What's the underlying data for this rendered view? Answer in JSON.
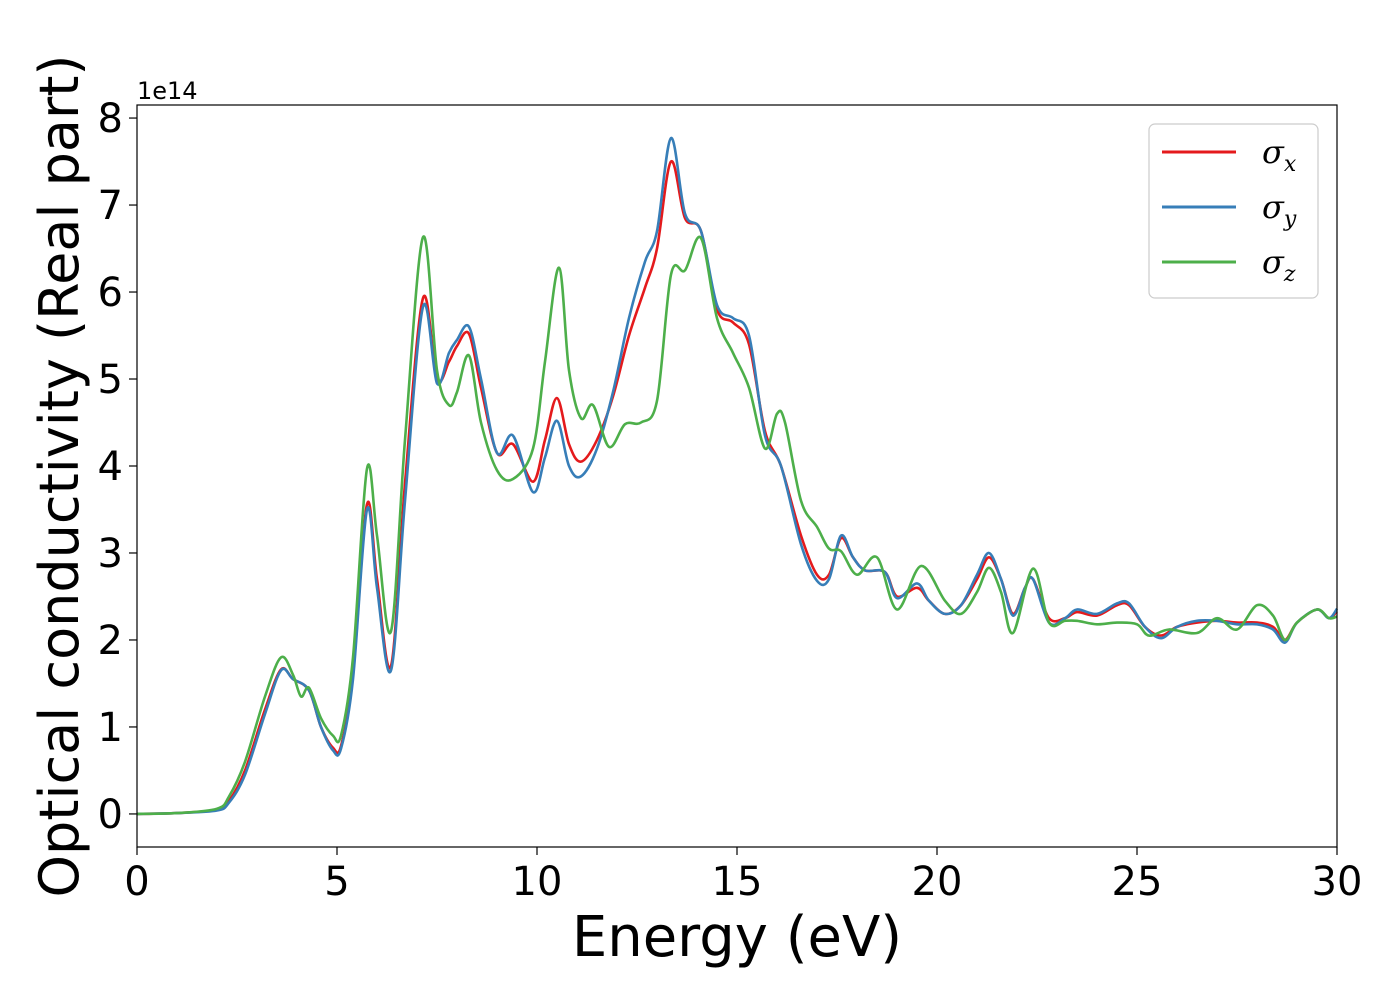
{
  "chart_data": {
    "type": "line",
    "xlabel": "Energy (eV)",
    "ylabel": "Optical conductivity (Real part)",
    "y_offset_label": "1e14",
    "xlim": [
      0,
      30
    ],
    "ylim": [
      -0.38,
      8.15
    ],
    "x_ticks": [
      0,
      5,
      10,
      15,
      20,
      25,
      30
    ],
    "x_tick_labels": [
      "0",
      "5",
      "10",
      "15",
      "20",
      "25",
      "30"
    ],
    "y_ticks": [
      0,
      1,
      2,
      3,
      4,
      5,
      6,
      7,
      8
    ],
    "y_tick_labels": [
      "0",
      "1",
      "2",
      "3",
      "4",
      "5",
      "6",
      "7",
      "8"
    ],
    "grid": false,
    "legend_position": "top-right",
    "series": [
      {
        "name": "σx",
        "name_base": "σ",
        "name_sub": "x",
        "color": "#e41a1c",
        "points": [
          [
            0,
            0
          ],
          [
            1,
            0.01
          ],
          [
            2,
            0.05
          ],
          [
            2.3,
            0.15
          ],
          [
            2.7,
            0.5
          ],
          [
            3.2,
            1.2
          ],
          [
            3.6,
            1.66
          ],
          [
            3.9,
            1.55
          ],
          [
            4.3,
            1.42
          ],
          [
            4.6,
            1.0
          ],
          [
            4.9,
            0.76
          ],
          [
            5.1,
            0.78
          ],
          [
            5.4,
            1.6
          ],
          [
            5.75,
            3.56
          ],
          [
            6.0,
            2.7
          ],
          [
            6.35,
            1.7
          ],
          [
            6.7,
            3.8
          ],
          [
            7.15,
            5.93
          ],
          [
            7.5,
            5.0
          ],
          [
            7.8,
            5.2
          ],
          [
            8.0,
            5.38
          ],
          [
            8.3,
            5.52
          ],
          [
            8.6,
            4.9
          ],
          [
            9.0,
            4.15
          ],
          [
            9.4,
            4.25
          ],
          [
            9.9,
            3.82
          ],
          [
            10.2,
            4.3
          ],
          [
            10.5,
            4.78
          ],
          [
            10.8,
            4.25
          ],
          [
            11.1,
            4.05
          ],
          [
            11.5,
            4.3
          ],
          [
            11.9,
            4.8
          ],
          [
            12.3,
            5.5
          ],
          [
            12.7,
            6.05
          ],
          [
            13.0,
            6.5
          ],
          [
            13.35,
            7.5
          ],
          [
            13.7,
            6.85
          ],
          [
            14.1,
            6.7
          ],
          [
            14.5,
            5.8
          ],
          [
            14.9,
            5.65
          ],
          [
            15.3,
            5.4
          ],
          [
            15.7,
            4.4
          ],
          [
            16.1,
            4.0
          ],
          [
            16.6,
            3.2
          ],
          [
            17.0,
            2.75
          ],
          [
            17.3,
            2.75
          ],
          [
            17.6,
            3.17
          ],
          [
            17.9,
            2.95
          ],
          [
            18.2,
            2.8
          ],
          [
            18.7,
            2.78
          ],
          [
            19.0,
            2.5
          ],
          [
            19.5,
            2.6
          ],
          [
            19.8,
            2.45
          ],
          [
            20.2,
            2.3
          ],
          [
            20.6,
            2.4
          ],
          [
            21.0,
            2.7
          ],
          [
            21.3,
            2.95
          ],
          [
            21.6,
            2.7
          ],
          [
            21.9,
            2.3
          ],
          [
            22.2,
            2.6
          ],
          [
            22.4,
            2.7
          ],
          [
            22.8,
            2.25
          ],
          [
            23.2,
            2.25
          ],
          [
            23.5,
            2.32
          ],
          [
            24.0,
            2.28
          ],
          [
            24.5,
            2.4
          ],
          [
            24.8,
            2.4
          ],
          [
            25.2,
            2.15
          ],
          [
            25.6,
            2.05
          ],
          [
            26.0,
            2.15
          ],
          [
            26.5,
            2.2
          ],
          [
            27.0,
            2.22
          ],
          [
            27.5,
            2.2
          ],
          [
            28.0,
            2.2
          ],
          [
            28.4,
            2.15
          ],
          [
            28.7,
            2.0
          ],
          [
            29.0,
            2.2
          ],
          [
            29.5,
            2.35
          ],
          [
            29.8,
            2.25
          ],
          [
            30,
            2.33
          ]
        ]
      },
      {
        "name": "σy",
        "name_base": "σ",
        "name_sub": "y",
        "color": "#377eb8",
        "points": [
          [
            0,
            0
          ],
          [
            1,
            0.01
          ],
          [
            2,
            0.04
          ],
          [
            2.3,
            0.13
          ],
          [
            2.7,
            0.45
          ],
          [
            3.2,
            1.15
          ],
          [
            3.6,
            1.65
          ],
          [
            3.9,
            1.55
          ],
          [
            4.3,
            1.42
          ],
          [
            4.6,
            1.0
          ],
          [
            4.9,
            0.73
          ],
          [
            5.1,
            0.75
          ],
          [
            5.4,
            1.55
          ],
          [
            5.75,
            3.5
          ],
          [
            6.0,
            2.6
          ],
          [
            6.35,
            1.65
          ],
          [
            6.7,
            3.6
          ],
          [
            7.15,
            5.83
          ],
          [
            7.5,
            4.95
          ],
          [
            7.8,
            5.3
          ],
          [
            8.0,
            5.45
          ],
          [
            8.3,
            5.6
          ],
          [
            8.6,
            5.0
          ],
          [
            9.0,
            4.15
          ],
          [
            9.4,
            4.35
          ],
          [
            9.9,
            3.7
          ],
          [
            10.2,
            4.1
          ],
          [
            10.5,
            4.52
          ],
          [
            10.8,
            4.0
          ],
          [
            11.1,
            3.88
          ],
          [
            11.5,
            4.2
          ],
          [
            11.9,
            4.85
          ],
          [
            12.3,
            5.7
          ],
          [
            12.7,
            6.35
          ],
          [
            13.0,
            6.7
          ],
          [
            13.35,
            7.77
          ],
          [
            13.7,
            6.9
          ],
          [
            14.1,
            6.7
          ],
          [
            14.5,
            5.85
          ],
          [
            14.9,
            5.7
          ],
          [
            15.3,
            5.5
          ],
          [
            15.7,
            4.35
          ],
          [
            16.1,
            4.0
          ],
          [
            16.6,
            3.1
          ],
          [
            17.0,
            2.68
          ],
          [
            17.3,
            2.7
          ],
          [
            17.6,
            3.2
          ],
          [
            17.9,
            2.95
          ],
          [
            18.2,
            2.8
          ],
          [
            18.7,
            2.78
          ],
          [
            19.0,
            2.48
          ],
          [
            19.5,
            2.65
          ],
          [
            19.8,
            2.45
          ],
          [
            20.2,
            2.3
          ],
          [
            20.6,
            2.4
          ],
          [
            21.0,
            2.75
          ],
          [
            21.3,
            3.0
          ],
          [
            21.6,
            2.7
          ],
          [
            21.9,
            2.28
          ],
          [
            22.2,
            2.6
          ],
          [
            22.4,
            2.7
          ],
          [
            22.8,
            2.2
          ],
          [
            23.2,
            2.25
          ],
          [
            23.5,
            2.35
          ],
          [
            24.0,
            2.3
          ],
          [
            24.5,
            2.42
          ],
          [
            24.8,
            2.42
          ],
          [
            25.2,
            2.15
          ],
          [
            25.6,
            2.02
          ],
          [
            26.0,
            2.15
          ],
          [
            26.5,
            2.22
          ],
          [
            27.0,
            2.22
          ],
          [
            27.5,
            2.18
          ],
          [
            28.0,
            2.18
          ],
          [
            28.4,
            2.12
          ],
          [
            28.7,
            1.97
          ],
          [
            29.0,
            2.2
          ],
          [
            29.5,
            2.35
          ],
          [
            29.8,
            2.25
          ],
          [
            30,
            2.36
          ]
        ]
      },
      {
        "name": "σz",
        "name_base": "σ",
        "name_sub": "z",
        "color": "#4daf4a",
        "points": [
          [
            0,
            0
          ],
          [
            1,
            0.01
          ],
          [
            2,
            0.06
          ],
          [
            2.3,
            0.2
          ],
          [
            2.7,
            0.6
          ],
          [
            3.2,
            1.35
          ],
          [
            3.6,
            1.8
          ],
          [
            3.9,
            1.6
          ],
          [
            4.1,
            1.35
          ],
          [
            4.3,
            1.45
          ],
          [
            4.6,
            1.1
          ],
          [
            4.9,
            0.9
          ],
          [
            5.1,
            0.9
          ],
          [
            5.4,
            1.8
          ],
          [
            5.75,
            3.97
          ],
          [
            6.0,
            3.2
          ],
          [
            6.35,
            2.1
          ],
          [
            6.7,
            4.3
          ],
          [
            7.15,
            6.63
          ],
          [
            7.5,
            5.1
          ],
          [
            7.8,
            4.7
          ],
          [
            8.0,
            4.85
          ],
          [
            8.3,
            5.27
          ],
          [
            8.6,
            4.5
          ],
          [
            9.0,
            3.95
          ],
          [
            9.4,
            3.85
          ],
          [
            9.9,
            4.2
          ],
          [
            10.2,
            5.2
          ],
          [
            10.55,
            6.28
          ],
          [
            10.8,
            5.1
          ],
          [
            11.1,
            4.55
          ],
          [
            11.4,
            4.7
          ],
          [
            11.8,
            4.22
          ],
          [
            12.2,
            4.48
          ],
          [
            12.6,
            4.5
          ],
          [
            13.0,
            4.75
          ],
          [
            13.35,
            6.2
          ],
          [
            13.7,
            6.25
          ],
          [
            14.1,
            6.62
          ],
          [
            14.5,
            5.7
          ],
          [
            14.9,
            5.3
          ],
          [
            15.3,
            4.9
          ],
          [
            15.7,
            4.2
          ],
          [
            16.0,
            4.6
          ],
          [
            16.2,
            4.5
          ],
          [
            16.6,
            3.6
          ],
          [
            17.0,
            3.3
          ],
          [
            17.3,
            3.05
          ],
          [
            17.6,
            3.02
          ],
          [
            18.0,
            2.75
          ],
          [
            18.5,
            2.95
          ],
          [
            19.0,
            2.35
          ],
          [
            19.6,
            2.85
          ],
          [
            20.2,
            2.45
          ],
          [
            20.6,
            2.3
          ],
          [
            21.0,
            2.55
          ],
          [
            21.3,
            2.83
          ],
          [
            21.6,
            2.55
          ],
          [
            21.9,
            2.08
          ],
          [
            22.4,
            2.82
          ],
          [
            22.8,
            2.2
          ],
          [
            23.2,
            2.22
          ],
          [
            23.5,
            2.22
          ],
          [
            24.0,
            2.18
          ],
          [
            24.5,
            2.2
          ],
          [
            25.0,
            2.18
          ],
          [
            25.3,
            2.05
          ],
          [
            25.8,
            2.12
          ],
          [
            26.5,
            2.08
          ],
          [
            27.0,
            2.25
          ],
          [
            27.5,
            2.12
          ],
          [
            28.0,
            2.4
          ],
          [
            28.4,
            2.28
          ],
          [
            28.7,
            2.0
          ],
          [
            29.0,
            2.2
          ],
          [
            29.5,
            2.35
          ],
          [
            29.8,
            2.25
          ],
          [
            30,
            2.27
          ]
        ]
      }
    ]
  }
}
